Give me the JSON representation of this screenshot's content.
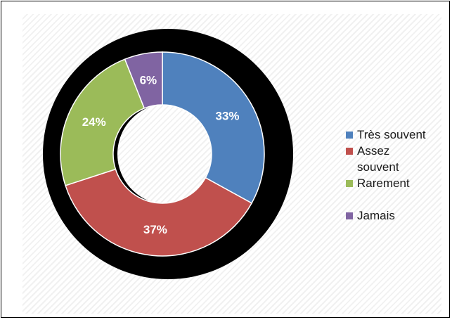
{
  "chart_data": {
    "type": "pie",
    "variant": "doughnut",
    "categories": [
      "Très souvent",
      "Assez souvent",
      "Rarement",
      "Jamais"
    ],
    "values": [
      33,
      37,
      24,
      6
    ],
    "data_labels": [
      "33%",
      "37%",
      "24%",
      "6%"
    ],
    "colors": [
      "#4f81bd",
      "#c0504d",
      "#9bbb59",
      "#8064a2"
    ],
    "title": "",
    "legend_position": "right",
    "start_angle": "top",
    "direction": "clockwise"
  },
  "legend": {
    "items": [
      {
        "label": "Très souvent",
        "color": "#4f81bd"
      },
      {
        "label": "Assez souvent",
        "color": "#c0504d"
      },
      {
        "label": "Rarement",
        "color": "#9bbb59"
      },
      {
        "label": "Jamais",
        "color": "#8064a2"
      }
    ]
  }
}
